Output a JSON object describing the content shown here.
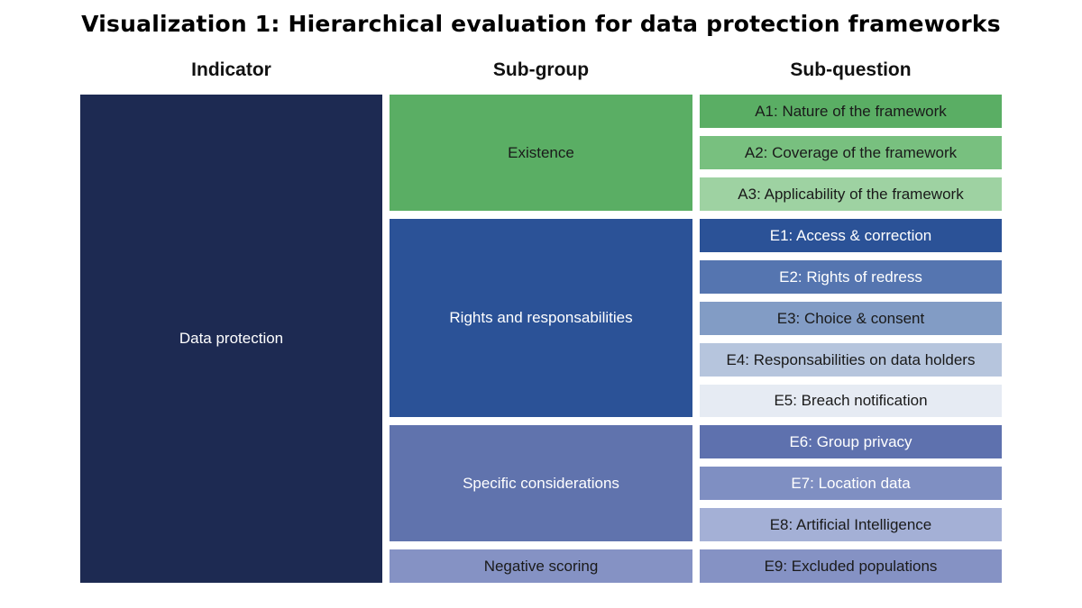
{
  "title": "Visualization 1: Hierarchical evaluation for data protection frameworks",
  "headers": {
    "indicator": "Indicator",
    "subgroup": "Sub-group",
    "subquestion": "Sub-question"
  },
  "indicator": {
    "label": "Data protection",
    "color": "#1d2a52",
    "text_color": "#ffffff"
  },
  "subgroups": [
    {
      "label": "Existence",
      "color": "#5aae64",
      "text_color": "#1a1a1a"
    },
    {
      "label": "Rights and responsabilities",
      "color": "#2b5297",
      "text_color": "#ffffff"
    },
    {
      "label": "Specific considerations",
      "color": "#6073ad",
      "text_color": "#ffffff"
    },
    {
      "label": "Negative scoring",
      "color": "#8592c4",
      "text_color": "#1a1a1a"
    }
  ],
  "subquestions": [
    {
      "label": "A1: Nature of the framework",
      "color": "#5aae64",
      "text_color": "#1a1a1a"
    },
    {
      "label": "A2: Coverage of the framework",
      "color": "#78c07f",
      "text_color": "#1a1a1a"
    },
    {
      "label": "A3: Applicability of the framework",
      "color": "#9ed2a2",
      "text_color": "#1a1a1a"
    },
    {
      "label": "E1: Access & correction",
      "color": "#2b5297",
      "text_color": "#ffffff"
    },
    {
      "label": "E2: Rights of redress",
      "color": "#5575b0",
      "text_color": "#ffffff"
    },
    {
      "label": "E3: Choice & consent",
      "color": "#829cc5",
      "text_color": "#1a1a1a"
    },
    {
      "label": "E4: Responsabilities on data holders",
      "color": "#b6c5dd",
      "text_color": "#1a1a1a"
    },
    {
      "label": "E5: Breach notification",
      "color": "#e6ebf3",
      "text_color": "#1a1a1a"
    },
    {
      "label": "E6: Group privacy",
      "color": "#5e71ae",
      "text_color": "#ffffff"
    },
    {
      "label": "E7: Location data",
      "color": "#7f8fc2",
      "text_color": "#ffffff"
    },
    {
      "label": "E8: Artificial Intelligence",
      "color": "#a4b0d6",
      "text_color": "#1a1a1a"
    },
    {
      "label": "E9: Excluded populations",
      "color": "#8592c4",
      "text_color": "#1a1a1a"
    }
  ]
}
